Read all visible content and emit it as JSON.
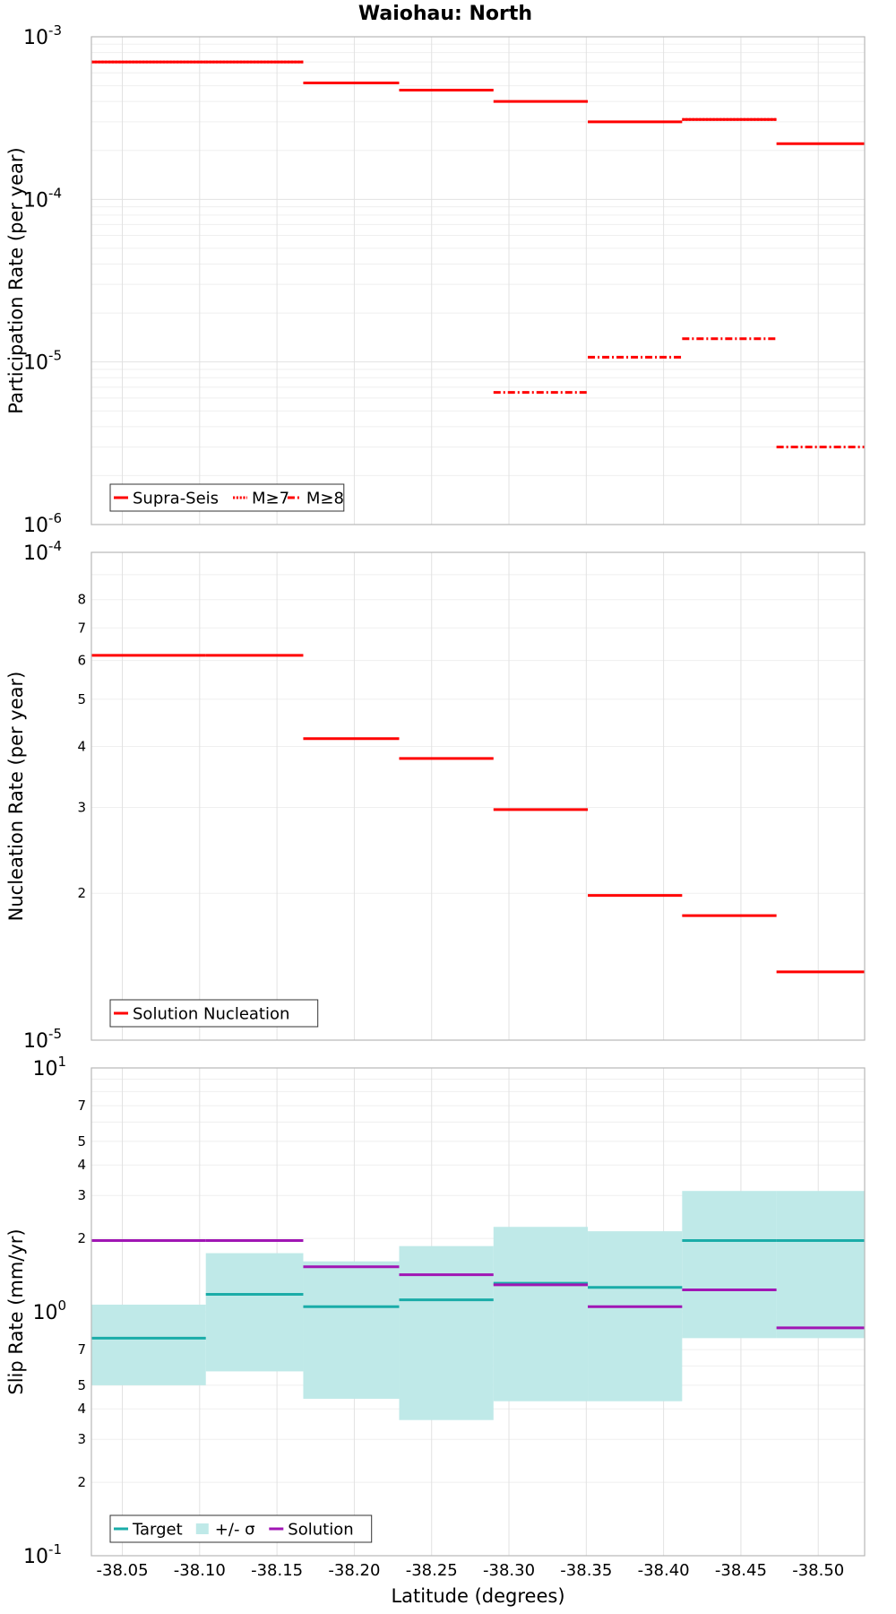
{
  "figure_title": "Waiohau: North",
  "colors": {
    "red": "#ff0000",
    "teal": "#1aaca8",
    "band": "#bfe9e8",
    "purple": "#a016b4"
  },
  "chart_data": [
    {
      "type": "line",
      "name": "participation",
      "title": "Waiohau: North",
      "ylabel": "Participation Rate (per year)",
      "xlabel": "",
      "yscale": "log",
      "ylim": [
        1e-06,
        0.001
      ],
      "xlim": [
        -38.03,
        -38.53
      ],
      "major_exps": [
        -6,
        -5,
        -4,
        -3
      ],
      "minor_labels": [],
      "grid": true,
      "legend": {
        "placement": "bottom-left",
        "entries": [
          {
            "label": "Supra-Seis",
            "style": "solid"
          },
          {
            "label": "M≥7",
            "style": "dotted"
          },
          {
            "label": "M≥8",
            "style": "dashdot"
          }
        ]
      },
      "series": [
        {
          "name": "Supra-Seis",
          "style": "solid",
          "color": "#ff0000",
          "segments": [
            [
              -38.03,
              -38.104,
              0.0007
            ],
            [
              -38.104,
              -38.167,
              0.0007
            ],
            [
              -38.167,
              -38.229,
              0.00052
            ],
            [
              -38.229,
              -38.29,
              0.00047
            ],
            [
              -38.29,
              -38.351,
              0.0004
            ],
            [
              -38.351,
              -38.412,
              0.0003
            ],
            [
              -38.412,
              -38.473,
              0.00031
            ],
            [
              -38.473,
              -38.53,
              0.00022
            ]
          ]
        },
        {
          "name": "M≥7",
          "style": "dotted",
          "color": "#ff0000",
          "segments": [
            [
              -38.03,
              -38.104,
              0.0007
            ],
            [
              -38.104,
              -38.167,
              0.0007
            ],
            [
              -38.412,
              -38.473,
              0.00031
            ]
          ]
        },
        {
          "name": "M≥8",
          "style": "dashdot",
          "color": "#ff0000",
          "segments": [
            [
              -38.29,
              -38.351,
              6.5e-06
            ],
            [
              -38.351,
              -38.412,
              1.07e-05
            ],
            [
              -38.412,
              -38.473,
              1.39e-05
            ],
            [
              -38.473,
              -38.53,
              3e-06
            ]
          ]
        }
      ]
    },
    {
      "type": "line",
      "name": "nucleation",
      "title": "",
      "ylabel": "Nucleation Rate (per year)",
      "xlabel": "",
      "yscale": "log",
      "ylim": [
        1e-05,
        0.0001
      ],
      "xlim": [
        -38.03,
        -38.53
      ],
      "major_exps": [
        -5,
        -4
      ],
      "minor_labels": [
        "2",
        "3",
        "4",
        "5",
        "6",
        "7",
        "8"
      ],
      "grid": true,
      "legend": {
        "placement": "bottom-left",
        "entries": [
          {
            "label": "Solution Nucleation",
            "style": "solid"
          }
        ]
      },
      "series": [
        {
          "name": "Solution Nucleation",
          "style": "solid",
          "color": "#ff0000",
          "segments": [
            [
              -38.03,
              -38.104,
              6.15e-05
            ],
            [
              -38.104,
              -38.167,
              6.15e-05
            ],
            [
              -38.167,
              -38.229,
              4.15e-05
            ],
            [
              -38.229,
              -38.29,
              3.78e-05
            ],
            [
              -38.29,
              -38.351,
              2.97e-05
            ],
            [
              -38.351,
              -38.412,
              1.98e-05
            ],
            [
              -38.412,
              -38.473,
              1.8e-05
            ],
            [
              -38.473,
              -38.53,
              1.38e-05
            ]
          ]
        }
      ]
    },
    {
      "type": "line",
      "name": "slip",
      "title": "",
      "ylabel": "Slip Rate (mm/yr)",
      "xlabel": "Latitude (degrees)",
      "yscale": "log",
      "ylim": [
        0.1,
        10
      ],
      "xlim": [
        -38.03,
        -38.53
      ],
      "major_exps": [
        -1,
        0,
        1
      ],
      "minor_labels": [
        "2",
        "3",
        "4",
        "5",
        "7",
        "2",
        "3",
        "4",
        "5",
        "7"
      ],
      "x_ticks": [
        "-38.05",
        "-38.10",
        "-38.15",
        "-38.20",
        "-38.25",
        "-38.30",
        "-38.35",
        "-38.40",
        "-38.45",
        "-38.50"
      ],
      "grid": true,
      "legend": {
        "placement": "bottom-left",
        "entries": [
          {
            "label": "Target",
            "style": "solid"
          },
          {
            "label": "+/- σ",
            "style": "band"
          },
          {
            "label": "Solution",
            "style": "solid"
          }
        ]
      },
      "band": [
        [
          -38.03,
          -38.104,
          0.5,
          1.07
        ],
        [
          -38.104,
          -38.167,
          0.57,
          1.74
        ],
        [
          -38.167,
          -38.229,
          0.44,
          1.61
        ],
        [
          -38.229,
          -38.29,
          0.36,
          1.86
        ],
        [
          -38.29,
          -38.351,
          0.43,
          2.23
        ],
        [
          -38.351,
          -38.412,
          0.43,
          2.14
        ],
        [
          -38.412,
          -38.473,
          0.78,
          3.13
        ],
        [
          -38.473,
          -38.53,
          0.78,
          3.13
        ]
      ],
      "series": [
        {
          "name": "Target",
          "style": "solid",
          "color": "#1aaca8",
          "segments": [
            [
              -38.03,
              -38.104,
              0.78
            ],
            [
              -38.104,
              -38.167,
              1.18
            ],
            [
              -38.167,
              -38.229,
              1.05
            ],
            [
              -38.229,
              -38.29,
              1.12
            ],
            [
              -38.29,
              -38.351,
              1.31
            ],
            [
              -38.351,
              -38.412,
              1.26
            ],
            [
              -38.412,
              -38.473,
              1.96
            ],
            [
              -38.473,
              -38.53,
              1.96
            ]
          ]
        },
        {
          "name": "Solution",
          "style": "solid",
          "color": "#a016b4",
          "segments": [
            [
              -38.03,
              -38.104,
              1.96
            ],
            [
              -38.104,
              -38.167,
              1.96
            ],
            [
              -38.167,
              -38.229,
              1.53
            ],
            [
              -38.229,
              -38.29,
              1.42
            ],
            [
              -38.29,
              -38.351,
              1.29
            ],
            [
              -38.351,
              -38.412,
              1.05
            ],
            [
              -38.412,
              -38.473,
              1.23
            ],
            [
              -38.473,
              -38.53,
              0.86
            ]
          ]
        }
      ]
    }
  ]
}
